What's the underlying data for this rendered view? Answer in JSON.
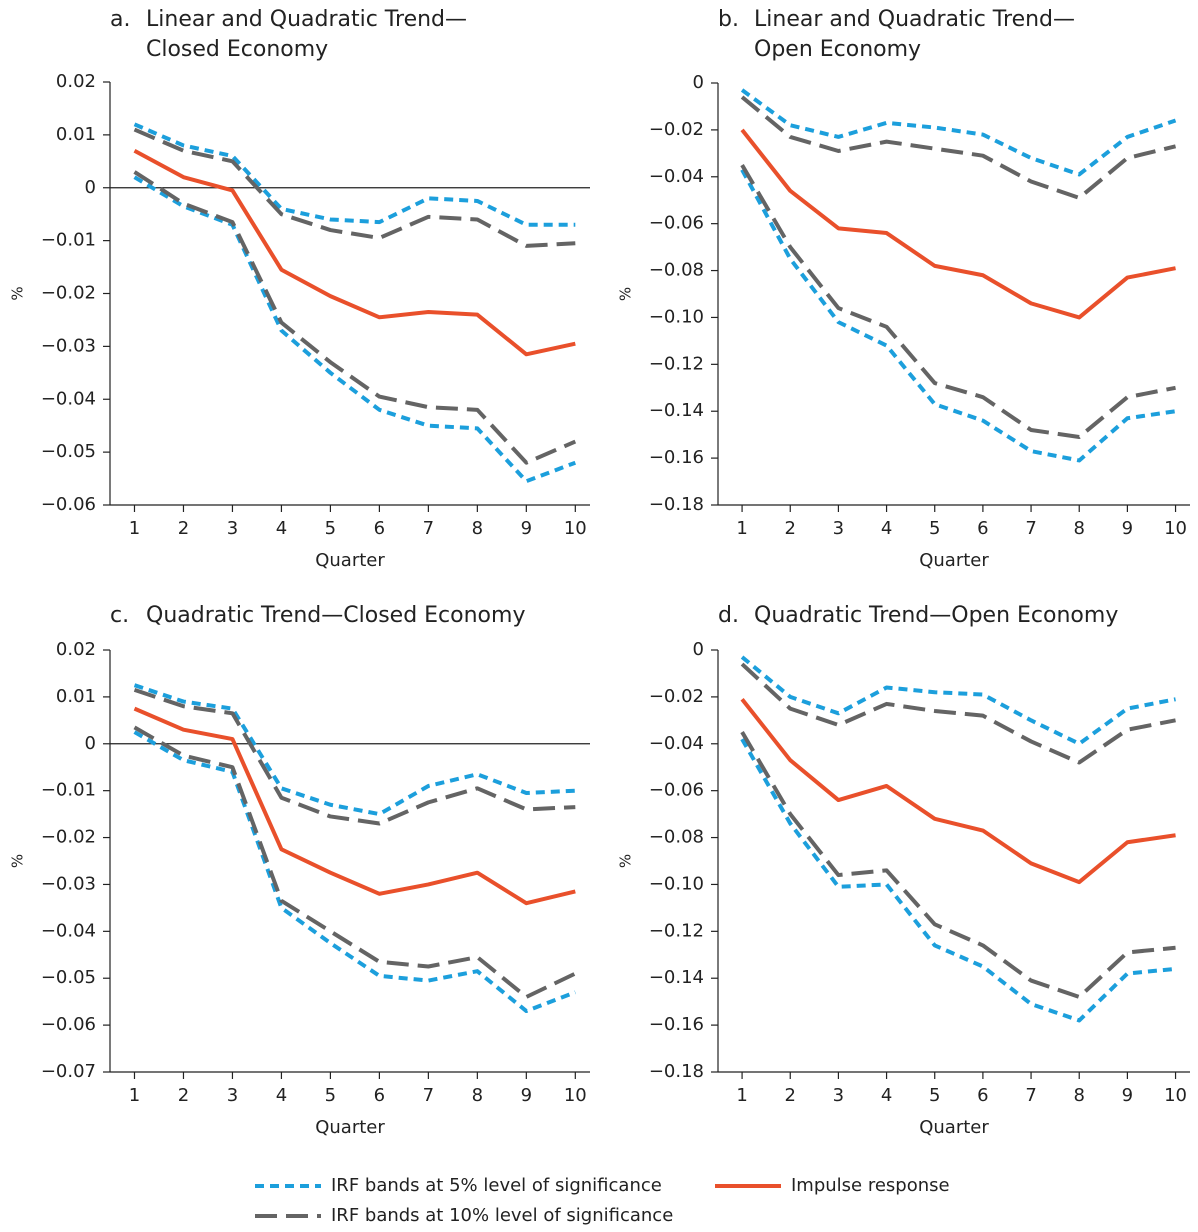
{
  "legend": [
    {
      "name": "IRF bands at 5% level of significance",
      "color": "#1c9fdc",
      "dash": "short"
    },
    {
      "name": "IRF bands at 10% level of significance",
      "color": "#646464",
      "dash": "long"
    },
    {
      "name": "Impulse response",
      "color": "#e9502b",
      "dash": "solid"
    }
  ],
  "chart_data": [
    {
      "type": "line",
      "label": "a.",
      "title_lines": [
        "Linear and Quadratic Trend—",
        "Closed Economy"
      ],
      "ylabel": "%",
      "xlabel": "Quarter",
      "x": [
        1,
        2,
        3,
        4,
        5,
        6,
        7,
        8,
        9,
        10
      ],
      "xlim": [
        0.5,
        10.3
      ],
      "xticks": [
        1,
        2,
        3,
        4,
        5,
        6,
        7,
        8,
        9,
        10
      ],
      "ylim": [
        -0.06,
        0.02
      ],
      "yticks": [
        0.02,
        0.01,
        0,
        {
          "value": -0.01,
          "label": "−0.01"
        },
        {
          "value": -0.02,
          "label": "−0.02"
        },
        {
          "value": -0.03,
          "label": "−0.03"
        },
        {
          "value": -0.04,
          "label": "−0.04"
        },
        {
          "value": -0.05,
          "label": "−0.05"
        },
        {
          "value": -0.06,
          "label": "−0.06"
        }
      ],
      "series": [
        {
          "upper": [
            0.012,
            0.008,
            0.006,
            -0.004,
            -0.006,
            -0.0065,
            -0.002,
            -0.0025,
            -0.007,
            -0.007
          ],
          "lower": [
            0.002,
            -0.0035,
            -0.007,
            -0.027,
            -0.035,
            -0.042,
            -0.045,
            -0.0455,
            -0.0555,
            -0.052
          ]
        },
        {
          "upper": [
            0.011,
            0.007,
            0.005,
            -0.005,
            -0.008,
            -0.0095,
            -0.0055,
            -0.006,
            -0.011,
            -0.0105
          ],
          "lower": [
            0.003,
            -0.003,
            -0.0065,
            -0.0255,
            -0.033,
            -0.0395,
            -0.0415,
            -0.042,
            -0.052,
            -0.048
          ]
        },
        {
          "values": [
            0.007,
            0.002,
            -0.0005,
            -0.0155,
            -0.0205,
            -0.0245,
            -0.0235,
            -0.024,
            -0.0315,
            -0.0295
          ]
        }
      ]
    },
    {
      "type": "line",
      "label": "b.",
      "title_lines": [
        "Linear and Quadratic Trend—",
        "Open Economy"
      ],
      "ylabel": "%",
      "xlabel": "Quarter",
      "x": [
        1,
        2,
        3,
        4,
        5,
        6,
        7,
        8,
        9,
        10
      ],
      "xlim": [
        0.5,
        10.3
      ],
      "xticks": [
        1,
        2,
        3,
        4,
        5,
        6,
        7,
        8,
        9,
        10
      ],
      "ylim": [
        -0.18,
        0
      ],
      "yticks": [
        0,
        {
          "value": -0.02,
          "label": "−0.02"
        },
        {
          "value": -0.04,
          "label": "−0.04"
        },
        {
          "value": -0.06,
          "label": "−0.06"
        },
        {
          "value": -0.08,
          "label": "−0.08"
        },
        {
          "value": -0.1,
          "label": "−0.10"
        },
        {
          "value": -0.12,
          "label": "−0.12"
        },
        {
          "value": -0.14,
          "label": "−0.14"
        },
        {
          "value": -0.16,
          "label": "−0.16"
        },
        {
          "value": -0.18,
          "label": "−0.18"
        }
      ],
      "series": [
        {
          "upper": [
            -0.003,
            -0.018,
            -0.023,
            -0.017,
            -0.019,
            -0.022,
            -0.032,
            -0.039,
            -0.023,
            -0.016
          ],
          "lower": [
            -0.037,
            -0.075,
            -0.102,
            -0.112,
            -0.137,
            -0.144,
            -0.157,
            -0.161,
            -0.143,
            -0.14
          ]
        },
        {
          "upper": [
            -0.006,
            -0.023,
            -0.029,
            -0.025,
            -0.028,
            -0.031,
            -0.042,
            -0.049,
            -0.032,
            -0.027
          ],
          "lower": [
            -0.035,
            -0.07,
            -0.096,
            -0.104,
            -0.128,
            -0.134,
            -0.148,
            -0.151,
            -0.134,
            -0.13
          ]
        },
        {
          "values": [
            -0.02,
            -0.046,
            -0.062,
            -0.064,
            -0.078,
            -0.082,
            -0.094,
            -0.1,
            -0.083,
            -0.079
          ]
        }
      ]
    },
    {
      "type": "line",
      "label": "c.",
      "title_lines": [
        "Quadratic Trend—Closed Economy"
      ],
      "ylabel": "%",
      "xlabel": "Quarter",
      "x": [
        1,
        2,
        3,
        4,
        5,
        6,
        7,
        8,
        9,
        10
      ],
      "xlim": [
        0.5,
        10.3
      ],
      "xticks": [
        1,
        2,
        3,
        4,
        5,
        6,
        7,
        8,
        9,
        10
      ],
      "ylim": [
        -0.07,
        0.02
      ],
      "yticks": [
        0.02,
        0.01,
        0,
        {
          "value": -0.01,
          "label": "−0.01"
        },
        {
          "value": -0.02,
          "label": "−0.02"
        },
        {
          "value": -0.03,
          "label": "−0.03"
        },
        {
          "value": -0.04,
          "label": "−0.04"
        },
        {
          "value": -0.05,
          "label": "−0.05"
        },
        {
          "value": -0.06,
          "label": "−0.06"
        },
        {
          "value": -0.07,
          "label": "−0.07"
        }
      ],
      "series": [
        {
          "upper": [
            0.0125,
            0.009,
            0.0075,
            -0.0095,
            -0.013,
            -0.015,
            -0.009,
            -0.0065,
            -0.0105,
            -0.01
          ],
          "lower": [
            0.0025,
            -0.0035,
            -0.006,
            -0.035,
            -0.0425,
            -0.0495,
            -0.0505,
            -0.0485,
            -0.057,
            -0.053
          ]
        },
        {
          "upper": [
            0.0115,
            0.008,
            0.0065,
            -0.0115,
            -0.0155,
            -0.017,
            -0.0125,
            -0.0095,
            -0.014,
            -0.0135
          ],
          "lower": [
            0.0035,
            -0.0025,
            -0.005,
            -0.0335,
            -0.04,
            -0.0465,
            -0.0475,
            -0.0455,
            -0.054,
            -0.049
          ]
        },
        {
          "values": [
            0.0075,
            0.003,
            0.001,
            -0.0225,
            -0.0275,
            -0.032,
            -0.03,
            -0.0275,
            -0.034,
            -0.0315
          ]
        }
      ]
    },
    {
      "type": "line",
      "label": "d.",
      "title_lines": [
        "Quadratic Trend—Open Economy"
      ],
      "ylabel": "%",
      "xlabel": "Quarter",
      "x": [
        1,
        2,
        3,
        4,
        5,
        6,
        7,
        8,
        9,
        10
      ],
      "xlim": [
        0.5,
        10.3
      ],
      "xticks": [
        1,
        2,
        3,
        4,
        5,
        6,
        7,
        8,
        9,
        10
      ],
      "ylim": [
        -0.18,
        0
      ],
      "yticks": [
        0,
        {
          "value": -0.02,
          "label": "−0.02"
        },
        {
          "value": -0.04,
          "label": "−0.04"
        },
        {
          "value": -0.06,
          "label": "−0.06"
        },
        {
          "value": -0.08,
          "label": "−0.08"
        },
        {
          "value": -0.1,
          "label": "−0.10"
        },
        {
          "value": -0.12,
          "label": "−0.12"
        },
        {
          "value": -0.14,
          "label": "−0.14"
        },
        {
          "value": -0.16,
          "label": "−0.16"
        },
        {
          "value": -0.18,
          "label": "−0.18"
        }
      ],
      "series": [
        {
          "upper": [
            -0.003,
            -0.02,
            -0.027,
            -0.016,
            -0.018,
            -0.019,
            -0.03,
            -0.04,
            -0.025,
            -0.021
          ],
          "lower": [
            -0.038,
            -0.074,
            -0.101,
            -0.1,
            -0.126,
            -0.135,
            -0.151,
            -0.158,
            -0.138,
            -0.136
          ]
        },
        {
          "upper": [
            -0.006,
            -0.025,
            -0.032,
            -0.023,
            -0.026,
            -0.028,
            -0.039,
            -0.048,
            -0.034,
            -0.03
          ],
          "lower": [
            -0.035,
            -0.07,
            -0.096,
            -0.094,
            -0.117,
            -0.126,
            -0.141,
            -0.148,
            -0.129,
            -0.127
          ]
        },
        {
          "values": [
            -0.021,
            -0.047,
            -0.064,
            -0.058,
            -0.072,
            -0.077,
            -0.091,
            -0.099,
            -0.082,
            -0.079
          ]
        }
      ]
    }
  ]
}
